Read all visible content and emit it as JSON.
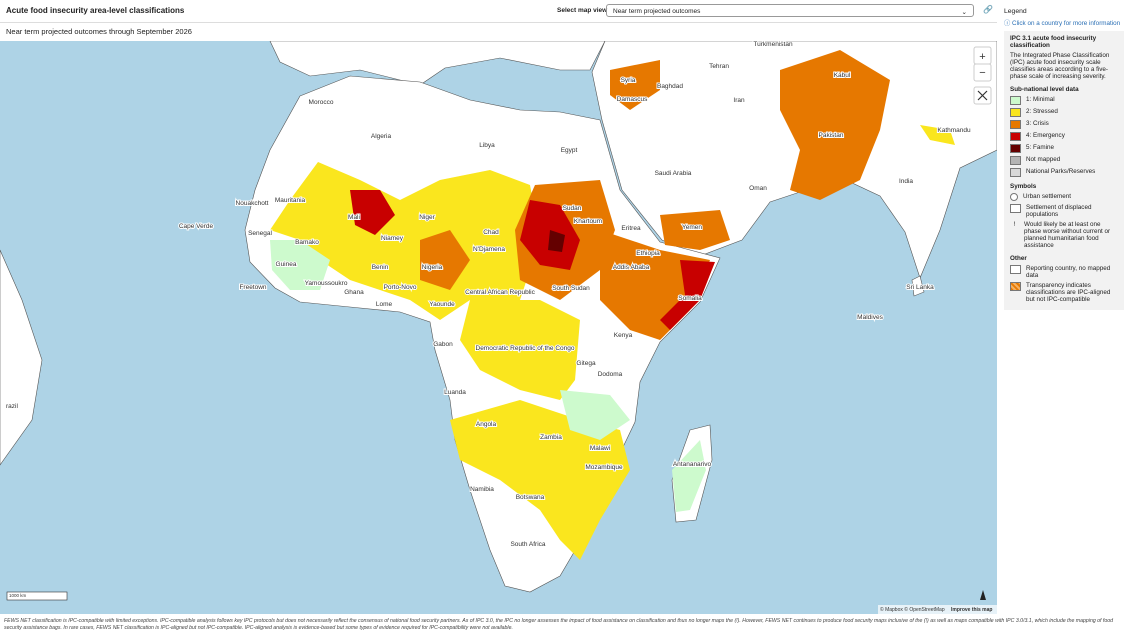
{
  "header": {
    "title": "Acute food insecurity area-level classifications",
    "select_label": "Select map view",
    "dropdown": "Near term projected outcomes"
  },
  "subtitle": "Near term projected outcomes through September 2026",
  "map": {
    "labels": [
      "Turkmenistan",
      "Tehran",
      "Syria",
      "Damascus",
      "Baghdad",
      "Iran",
      "Kabul",
      "Pakistan",
      "Kathmandu",
      "Morocco",
      "Algeria",
      "Libya",
      "Egypt",
      "Saudi Arabia",
      "Oman",
      "India",
      "Mauritania",
      "Nouakchott",
      "Mali",
      "Niger",
      "Chad",
      "Sudan",
      "Khartoum",
      "Yemen",
      "Eritrea",
      "Cape Verde",
      "Senegal",
      "Bamako",
      "Niamey",
      "N'Djamena",
      "Guinea",
      "Freetown",
      "Yamoussoukro",
      "Ghana",
      "Benin",
      "Porto-Novo",
      "Nigeria",
      "Central African Republic",
      "South Sudan",
      "Ethiopia",
      "Addis Ababa",
      "Somalia",
      "Sri Lanka",
      "Lome",
      "Yaounde",
      "Maldives",
      "Gabon",
      "Kenya",
      "Democratic Republic of the Congo",
      "Gitega",
      "Dodoma",
      "Luanda",
      "Angola",
      "Zambia",
      "Malawi",
      "Mozambique",
      "Antananarivo",
      "Namibia",
      "Botswana",
      "South Africa",
      "razil"
    ],
    "zoom_in": "+",
    "zoom_out": "−",
    "scale": "1000 km",
    "attribution": "© Mapbox © OpenStreetMap",
    "improve": "Improve this map"
  },
  "legend": {
    "heading": "Legend",
    "hint": "Click on a country for more information",
    "ipc_title": "IPC 3.1 acute food insecurity classification",
    "ipc_desc": "The Integrated Phase Classification (IPC) acute food insecurity scale classifies areas according to a five-phase scale of increasing severity.",
    "sub_title": "Sub-national level data",
    "phases": [
      {
        "label": "1: Minimal",
        "color": "#cdfacd"
      },
      {
        "label": "2: Stressed",
        "color": "#fae61e"
      },
      {
        "label": "3: Crisis",
        "color": "#e67800"
      },
      {
        "label": "4: Emergency",
        "color": "#c80000"
      },
      {
        "label": "5: Famine",
        "color": "#640000"
      },
      {
        "label": "Not mapped",
        "color": "#b4b4b4"
      },
      {
        "label": "National Parks/Reserves",
        "color": "#d8d8d8"
      }
    ],
    "symbols_title": "Symbols",
    "symbols": [
      "Urban settlement",
      "Settlement of displaced populations",
      "Would likely be at least one phase worse without current or planned humanitarian food assistance"
    ],
    "other_title": "Other",
    "other": [
      "Reporting country, no mapped data",
      "Transparency indicates classifications are IPC-aligned but not IPC-compatible"
    ]
  },
  "footer": "FEWS NET classification is IPC-compatible with limited exceptions. IPC-compatible analysis follows key IPC protocols but does not necessarily reflect the consensus of national food security partners. As of IPC 3.0, the IPC no longer assesses the impact of food assistance on classification and thus no longer maps the (!). However, FEWS NET continues to produce food security maps inclusive of the (!) as well as maps compatible with IPC 3.0/3.1, which include the mapping of food security assistance bags. In rare cases, FEWS NET classification is IPC-aligned but not IPC-compatible. IPC-aligned analysis is evidence-based but some types of evidence required for IPC-compatibility were not available."
}
